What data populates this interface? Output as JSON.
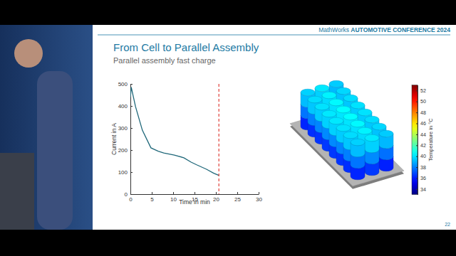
{
  "slide": {
    "header_brand": "MathWorks",
    "header_event": "AUTOMOTIVE CONFERENCE 2024",
    "title": "From Cell to Parallel Assembly",
    "subtitle": "Parallel assembly fast charge",
    "page_number": "22"
  },
  "chart_data": [
    {
      "type": "line",
      "xlabel": "Time in min",
      "ylabel": "Current in A",
      "x": [
        0,
        0.2,
        1.2,
        2.8,
        4.8,
        6.5,
        7.8,
        10.3,
        12.5,
        14.2,
        15.5,
        17.8,
        19.5,
        20.7
      ],
      "values": [
        440,
        485,
        397,
        290,
        210,
        195,
        187,
        177,
        165,
        145,
        133,
        113,
        95,
        85
      ],
      "color": "#20687a",
      "xlim": [
        0,
        30
      ],
      "ylim": [
        0,
        500
      ],
      "xticks": [
        0,
        5,
        10,
        15,
        20,
        25,
        30
      ],
      "yticks": [
        0,
        100,
        200,
        300,
        400,
        500
      ],
      "vline": {
        "x": 20.7,
        "color": "#e0403a",
        "line_style": "dashed"
      }
    },
    {
      "type": "heatmap",
      "colorbar_label": "Temperature in °C",
      "colorbar_range": [
        33,
        53
      ],
      "colorbar_ticks": [
        34,
        36,
        38,
        40,
        42,
        44,
        46,
        48,
        50,
        52
      ],
      "cells": [
        [
          [
            36.2,
            37.8,
            39.2
          ],
          [
            36.4,
            38.0,
            39.4
          ],
          [
            36.5,
            38.1,
            39.5
          ],
          [
            36.6,
            38.2,
            39.6
          ],
          [
            36.6,
            38.2,
            39.6
          ],
          [
            36.5,
            38.1,
            39.5
          ],
          [
            36.4,
            38.0,
            39.4
          ],
          [
            36.2,
            37.8,
            39.2
          ]
        ],
        [
          [
            36.6,
            38.2,
            39.6
          ],
          [
            36.8,
            38.4,
            39.8
          ],
          [
            36.9,
            38.5,
            39.9
          ],
          [
            37.0,
            38.6,
            40.0
          ],
          [
            37.0,
            38.6,
            40.0
          ],
          [
            36.9,
            38.5,
            39.9
          ],
          [
            36.8,
            38.4,
            39.8
          ],
          [
            36.6,
            38.2,
            39.6
          ]
        ],
        [
          [
            36.1,
            37.7,
            39.1
          ],
          [
            36.3,
            37.9,
            39.3
          ],
          [
            36.4,
            38.0,
            39.4
          ],
          [
            36.5,
            38.1,
            39.5
          ],
          [
            36.5,
            38.1,
            39.5
          ],
          [
            36.4,
            38.0,
            39.4
          ],
          [
            36.3,
            37.9,
            39.3
          ],
          [
            36.1,
            37.7,
            39.1
          ]
        ]
      ]
    }
  ]
}
